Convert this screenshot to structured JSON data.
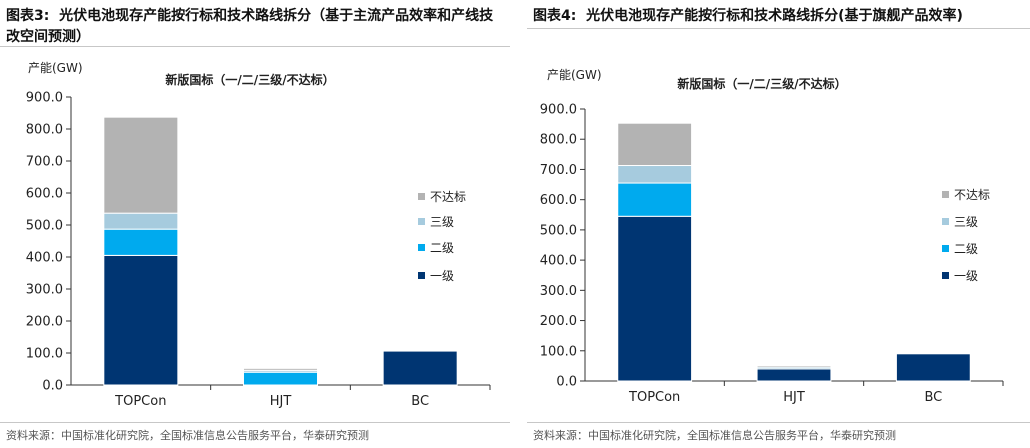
{
  "figures": [
    {
      "title_label": "图表3:",
      "title": "光伏电池现存产能按行标和技术路线拆分（基于主流产品效率和产线技改空间预测）",
      "source": "资料来源：中国标准化研究院，全国标准信息公告服务平台，华泰研究预测"
    },
    {
      "title_label": "图表4:",
      "title": "光伏电池现存产能按行标和技术路线拆分(基于旗舰产品效率)",
      "source": "资料来源：中国标准化研究院，全国标准信息公告服务平台，华泰研究预测"
    }
  ],
  "chart_data": [
    {
      "type": "bar",
      "stacked": true,
      "title": "新版国标（一/二/三级/不达标）",
      "ylabel": "产能(GW)",
      "xlabel": "",
      "categories": [
        "TOPCon",
        "HJT",
        "BC"
      ],
      "series": [
        {
          "name": "一级",
          "color": "#003572",
          "values": [
            405,
            0,
            106
          ]
        },
        {
          "name": "二级",
          "color": "#00aaee",
          "values": [
            82,
            40,
            0
          ]
        },
        {
          "name": "三级",
          "color": "#a6cbde",
          "values": [
            50,
            6,
            0
          ]
        },
        {
          "name": "不达标",
          "color": "#b3b3b3",
          "values": [
            300,
            6,
            0
          ]
        }
      ],
      "ylim": [
        0,
        900
      ],
      "yticks": [
        "0.0",
        "100.0",
        "200.0",
        "300.0",
        "400.0",
        "500.0",
        "600.0",
        "700.0",
        "800.0",
        "900.0"
      ],
      "legend_position": "right",
      "grid": false
    },
    {
      "type": "bar",
      "stacked": true,
      "title": "新版国标（一/二/三级/不达标）",
      "ylabel": "产能(GW)",
      "xlabel": "",
      "categories": [
        "TOPCon",
        "HJT",
        "BC"
      ],
      "series": [
        {
          "name": "一级",
          "color": "#003572",
          "values": [
            545,
            40,
            90
          ]
        },
        {
          "name": "二级",
          "color": "#00aaee",
          "values": [
            110,
            0,
            0
          ]
        },
        {
          "name": "三级",
          "color": "#a6cbde",
          "values": [
            58,
            6,
            0
          ]
        },
        {
          "name": "不达标",
          "color": "#b3b3b3",
          "values": [
            140,
            5,
            0
          ]
        }
      ],
      "ylim": [
        0,
        900
      ],
      "yticks": [
        "0.0",
        "100.0",
        "200.0",
        "300.0",
        "400.0",
        "500.0",
        "600.0",
        "700.0",
        "800.0",
        "900.0"
      ],
      "legend_position": "right",
      "grid": false
    }
  ]
}
